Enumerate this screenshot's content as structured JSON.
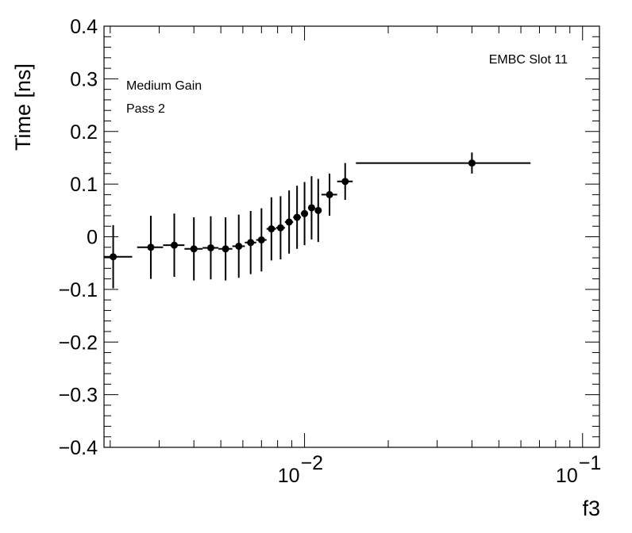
{
  "chart_data": {
    "type": "scatter",
    "xlabel": "f3",
    "ylabel": "Time [ns]",
    "x_scale": "log",
    "xlim": [
      0.0019,
      0.115
    ],
    "ylim": [
      -0.4,
      0.4
    ],
    "x_major_ticks": [
      0.01,
      0.1
    ],
    "x_tick_labels": [
      {
        "base": "10",
        "exp": "−2"
      },
      {
        "base": "10",
        "exp": "−1"
      }
    ],
    "y_ticks": [
      -0.4,
      -0.3,
      -0.2,
      -0.1,
      0,
      0.1,
      0.2,
      0.3,
      0.4
    ],
    "y_tick_labels": [
      "−0.4",
      "−0.3",
      "−0.2",
      "−0.1",
      "0",
      "0.1",
      "0.2",
      "0.3",
      "0.4"
    ],
    "annotations": {
      "title_right": "EMBC Slot 11",
      "line1": "Medium Gain",
      "line2": "Pass 2"
    },
    "points": [
      {
        "x": 0.00205,
        "xlo": 0.0019,
        "xhi": 0.0024,
        "y": -0.038,
        "yerr": 0.06
      },
      {
        "x": 0.0028,
        "xlo": 0.0025,
        "xhi": 0.0031,
        "y": -0.02,
        "yerr": 0.06
      },
      {
        "x": 0.0034,
        "xlo": 0.0031,
        "xhi": 0.0037,
        "y": -0.016,
        "yerr": 0.06
      },
      {
        "x": 0.004,
        "xlo": 0.0037,
        "xhi": 0.0043,
        "y": -0.023,
        "yerr": 0.06
      },
      {
        "x": 0.0046,
        "xlo": 0.0043,
        "xhi": 0.0049,
        "y": -0.021,
        "yerr": 0.06
      },
      {
        "x": 0.0052,
        "xlo": 0.0049,
        "xhi": 0.0055,
        "y": -0.023,
        "yerr": 0.06
      },
      {
        "x": 0.0058,
        "xlo": 0.0055,
        "xhi": 0.0061,
        "y": -0.018,
        "yerr": 0.06
      },
      {
        "x": 0.0064,
        "xlo": 0.0061,
        "xhi": 0.0067,
        "y": -0.011,
        "yerr": 0.06
      },
      {
        "x": 0.007,
        "xlo": 0.0067,
        "xhi": 0.0073,
        "y": -0.006,
        "yerr": 0.06
      },
      {
        "x": 0.0076,
        "xlo": 0.0073,
        "xhi": 0.0079,
        "y": 0.015,
        "yerr": 0.06
      },
      {
        "x": 0.0082,
        "xlo": 0.0079,
        "xhi": 0.0085,
        "y": 0.017,
        "yerr": 0.06
      },
      {
        "x": 0.0088,
        "xlo": 0.0085,
        "xhi": 0.0091,
        "y": 0.028,
        "yerr": 0.06
      },
      {
        "x": 0.0094,
        "xlo": 0.0091,
        "xhi": 0.0097,
        "y": 0.037,
        "yerr": 0.06
      },
      {
        "x": 0.01,
        "xlo": 0.0097,
        "xhi": 0.0103,
        "y": 0.044,
        "yerr": 0.06
      },
      {
        "x": 0.0106,
        "xlo": 0.0103,
        "xhi": 0.0109,
        "y": 0.055,
        "yerr": 0.06
      },
      {
        "x": 0.0112,
        "xlo": 0.0109,
        "xhi": 0.0115,
        "y": 0.05,
        "yerr": 0.06
      },
      {
        "x": 0.0123,
        "xlo": 0.0115,
        "xhi": 0.0131,
        "y": 0.08,
        "yerr": 0.04
      },
      {
        "x": 0.014,
        "xlo": 0.0131,
        "xhi": 0.0149,
        "y": 0.105,
        "yerr": 0.035
      },
      {
        "x": 0.04,
        "xlo": 0.0153,
        "xhi": 0.065,
        "y": 0.14,
        "yerr": 0.02
      }
    ]
  }
}
